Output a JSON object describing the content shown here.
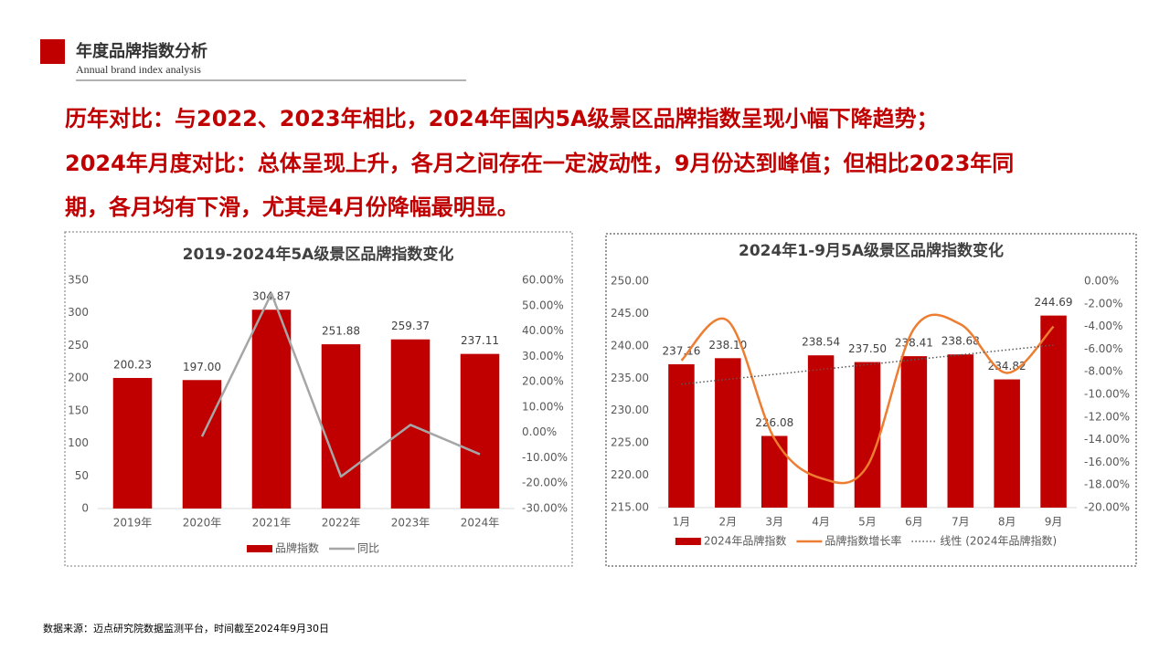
{
  "header": {
    "title": "年度品牌指数分析",
    "subtitle": "Annual brand index analysis"
  },
  "headline": [
    "历年对比：与2022、2023年相比，2024年国内5A级景区品牌指数呈现小幅下降趋势；",
    "2024年月度对比：总体呈现上升，各月之间存在一定波动性，9月份达到峰值；但相比2023年同",
    "期，各月均有下滑，尤其是4月份降幅最明显。"
  ],
  "source": "数据来源：迈点研究院数据监测平台，时间截至2024年9月30日",
  "chart_data": [
    {
      "type": "bar",
      "title": "2019-2024年5A级景区品牌指数变化",
      "categories": [
        "2019年",
        "2020年",
        "2021年",
        "2022年",
        "2023年",
        "2024年"
      ],
      "series": [
        {
          "name": "品牌指数",
          "color": "#c00000",
          "values": [
            200.23,
            197.0,
            304.87,
            251.88,
            259.37,
            237.11
          ],
          "value_labels": [
            "200.23",
            "197.00",
            "304.87",
            "251.88",
            "259.37",
            "237.11"
          ]
        },
        {
          "name": "同比",
          "color": "#a6a6a6",
          "axis": "y2",
          "type": "line",
          "values": [
            null,
            -1.6,
            54.8,
            -17.4,
            3.0,
            -8.6
          ]
        }
      ],
      "ylim": [
        0,
        350
      ],
      "yticks": [
        0,
        50,
        100,
        150,
        200,
        250,
        300,
        350
      ],
      "y2lim": [
        -30,
        60
      ],
      "y2ticks": [
        {
          "value": -30,
          "label": "-30.00%"
        },
        {
          "value": -20,
          "label": "-20.00%"
        },
        {
          "value": -10,
          "label": "-10.00%"
        },
        {
          "value": 0,
          "label": "0.00%"
        },
        {
          "value": 10,
          "label": "10.00%"
        },
        {
          "value": 20,
          "label": "20.00%"
        },
        {
          "value": 30,
          "label": "30.00%"
        },
        {
          "value": 40,
          "label": "40.00%"
        },
        {
          "value": 50,
          "label": "50.00%"
        },
        {
          "value": 60,
          "label": "60.00%"
        }
      ],
      "grid": false,
      "legend": "bottom"
    },
    {
      "type": "bar",
      "title": "2024年1-9月5A级景区品牌指数变化",
      "categories": [
        "1月",
        "2月",
        "3月",
        "4月",
        "5月",
        "6月",
        "7月",
        "8月",
        "9月"
      ],
      "series": [
        {
          "name": "2024年品牌指数",
          "color": "#c00000",
          "values": [
            237.16,
            238.1,
            226.08,
            238.54,
            237.5,
            238.41,
            238.68,
            234.82,
            244.69
          ],
          "value_labels": [
            "237.16",
            "238.10",
            "226.08",
            "238.54",
            "237.50",
            "238.41",
            "238.68",
            "234.82",
            "244.69"
          ]
        },
        {
          "name": "品牌指数增长率",
          "color": "#ed7d31",
          "axis": "y2",
          "type": "line",
          "smooth": true,
          "values": [
            -7.0,
            -3.5,
            -13.9,
            -17.4,
            -16.3,
            -4.2,
            -3.8,
            -8.1,
            -4.0
          ]
        },
        {
          "name": "线性 (2024年品牌指数)",
          "color": "#595959",
          "type": "trendline",
          "trend": "linear"
        }
      ],
      "ylim": [
        215,
        250
      ],
      "yticks": [
        {
          "value": 215,
          "label": "215.00"
        },
        {
          "value": 220,
          "label": "220.00"
        },
        {
          "value": 225,
          "label": "225.00"
        },
        {
          "value": 230,
          "label": "230.00"
        },
        {
          "value": 235,
          "label": "235.00"
        },
        {
          "value": 240,
          "label": "240.00"
        },
        {
          "value": 245,
          "label": "245.00"
        },
        {
          "value": 250,
          "label": "250.00"
        }
      ],
      "y2lim": [
        -20,
        0
      ],
      "y2ticks": [
        {
          "value": -20,
          "label": "-20.00%"
        },
        {
          "value": -18,
          "label": "-18.00%"
        },
        {
          "value": -16,
          "label": "-16.00%"
        },
        {
          "value": -14,
          "label": "-14.00%"
        },
        {
          "value": -12,
          "label": "-12.00%"
        },
        {
          "value": -10,
          "label": "-10.00%"
        },
        {
          "value": -8,
          "label": "-8.00%"
        },
        {
          "value": -6,
          "label": "-6.00%"
        },
        {
          "value": -4,
          "label": "-4.00%"
        },
        {
          "value": -2,
          "label": "-2.00%"
        },
        {
          "value": 0,
          "label": "0.00%"
        }
      ],
      "grid": false,
      "legend": "bottom"
    }
  ]
}
